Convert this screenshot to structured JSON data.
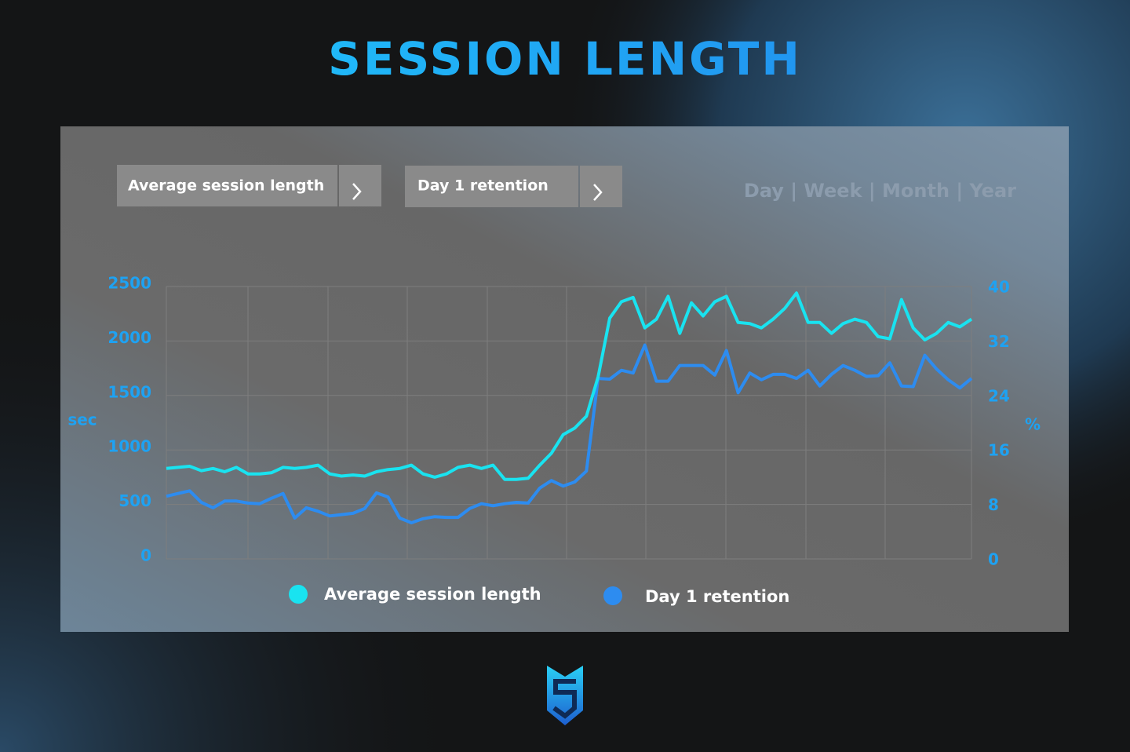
{
  "header": {
    "title": "SESSION LENGTH"
  },
  "controls": {
    "dropdowns": [
      "Average session length",
      "Day 1 retention"
    ],
    "period_selector": "Day | Week | Month | Year"
  },
  "chart_data": {
    "type": "line",
    "y_label": "sec",
    "y2_label": "%",
    "ylim": [
      0,
      2500
    ],
    "yticks": [
      0,
      500,
      1000,
      1500,
      2000,
      2500
    ],
    "y2lim": [
      0,
      40
    ],
    "y2ticks": [
      0,
      8,
      16,
      24,
      32,
      40
    ],
    "grid": true,
    "series": [
      {
        "name": "Average session length",
        "color": "#19e3f0",
        "values": [
          830,
          840,
          850,
          810,
          830,
          800,
          840,
          780,
          780,
          790,
          840,
          830,
          840,
          860,
          780,
          760,
          770,
          760,
          800,
          820,
          830,
          860,
          780,
          750,
          780,
          840,
          860,
          830,
          860,
          730,
          730,
          740,
          860,
          970,
          1140,
          1200,
          1310,
          1670,
          2210,
          2360,
          2400,
          2120,
          2200,
          2410,
          2070,
          2350,
          2230,
          2360,
          2410,
          2170,
          2160,
          2120,
          2200,
          2300,
          2440,
          2170,
          2170,
          2070,
          2160,
          2200,
          2170,
          2040,
          2020,
          2380,
          2120,
          2010,
          2070,
          2170,
          2130,
          2200
        ]
      },
      {
        "name": "Day 1 retention",
        "color": "#2d8cf0",
        "axis": "y2",
        "values": [
          9.2,
          9.6,
          10.0,
          8.3,
          7.5,
          8.5,
          8.5,
          8.2,
          8.1,
          8.9,
          9.6,
          6.0,
          7.5,
          7.0,
          6.3,
          6.5,
          6.7,
          7.4,
          9.7,
          9.1,
          6.0,
          5.3,
          5.9,
          6.2,
          6.1,
          6.1,
          7.4,
          8.1,
          7.8,
          8.1,
          8.3,
          8.2,
          10.4,
          11.5,
          10.7,
          11.3,
          12.9,
          26.5,
          26.4,
          27.7,
          27.3,
          31.4,
          26.1,
          26.1,
          28.4,
          28.4,
          28.4,
          27.0,
          30.6,
          24.4,
          27.3,
          26.3,
          27.1,
          27.1,
          26.5,
          27.7,
          25.4,
          27.1,
          28.4,
          27.7,
          26.8,
          26.9,
          28.8,
          25.4,
          25.3,
          29.9,
          27.9,
          26.3,
          25.1,
          26.5
        ]
      }
    ]
  }
}
